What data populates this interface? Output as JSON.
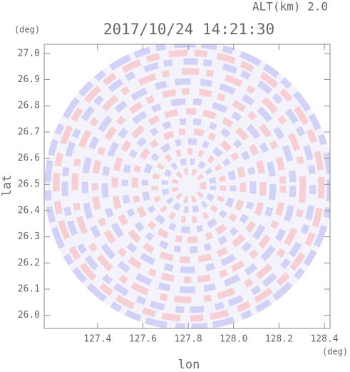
{
  "chart_data": {
    "type": "image",
    "title": "2017/10/24 14:21:30",
    "subtitle": "ALT(km) 2.0",
    "x_label": "lon",
    "y_label": "lat",
    "x_unit": "(deg)",
    "y_unit": "(deg)",
    "xlim": [
      127.165,
      128.425
    ],
    "ylim": [
      25.95,
      27.035
    ],
    "xticks": [
      127.4,
      127.6,
      127.8,
      {
        "value": 128.0,
        "label": "128.0"
      },
      128.2,
      128.4
    ],
    "yticks": [
      {
        "value": 26.0,
        "label": "26.0"
      },
      26.1,
      26.2,
      26.3,
      26.4,
      26.5,
      26.6,
      26.7,
      26.8,
      26.9,
      {
        "value": 27.0,
        "label": "27.0"
      }
    ]
  }
}
